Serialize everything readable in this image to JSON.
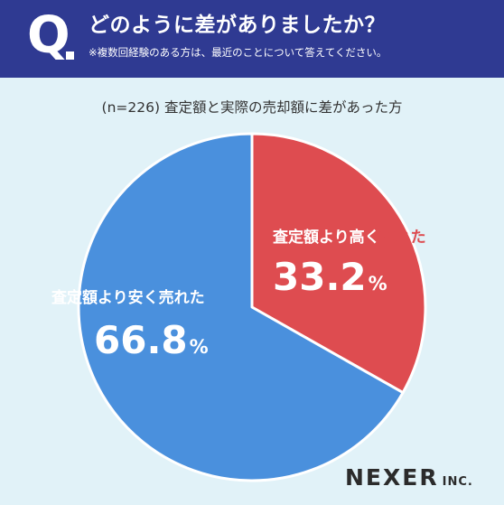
{
  "header": {
    "q_letter": "Q",
    "title": "どのように差がありましたか？",
    "note": "※複数回経験のある方は、最近のことについて答えてください。"
  },
  "subtitle": "(n=226) 査定額と実際の売却額に差があった方",
  "chart_data": {
    "type": "pie",
    "start": "12 o'clock, clockwise",
    "slices": [
      {
        "label": "査定額より高く売れた",
        "value": 33.2,
        "unit": "%",
        "color": "#de4c50"
      },
      {
        "label": "査定額より安く売れた",
        "value": 66.8,
        "unit": "%",
        "color": "#4a90dd"
      }
    ]
  },
  "colors": {
    "header_bg": "#2f3a92",
    "page_bg": "#e1f2f8"
  },
  "logo": {
    "main": "NEXER",
    "suffix": "INC."
  }
}
